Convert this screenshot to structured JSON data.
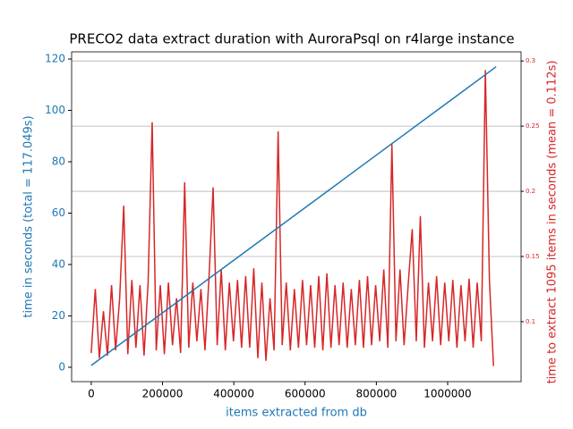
{
  "chart_data": {
    "type": "line",
    "title": "PRECO2 data extract duration with AuroraPsql on r4large instance",
    "xlabel": "items extracted from db",
    "ylabel": "time in seconds (total = 117.049s)",
    "y2label": "time to extract 1095 items in seconds (mean = 0.112s)",
    "xlim": [
      -55000,
      1206000
    ],
    "xticks": [
      0,
      200000,
      400000,
      600000,
      800000,
      1000000
    ],
    "ylim": [
      -5.6,
      122.8
    ],
    "yticks": [
      0,
      20,
      40,
      60,
      80,
      100,
      120
    ],
    "y2lim": [
      0.054,
      0.307
    ],
    "y2ticks": [
      0.1,
      0.15,
      0.2,
      0.25,
      0.3
    ],
    "grid": "y2",
    "series": [
      {
        "color": "#d62728",
        "axis": "y2",
        "x": [
          0,
          11400,
          22800,
          34200,
          45600,
          57000,
          68400,
          79800,
          91200,
          102600,
          114000,
          125400,
          136800,
          148200,
          159600,
          171000,
          182400,
          193800,
          205200,
          216600,
          228000,
          239400,
          250800,
          262200,
          273600,
          285000,
          296400,
          307800,
          319200,
          330600,
          342000,
          353400,
          364800,
          376200,
          387600,
          399000,
          410400,
          421800,
          433200,
          444600,
          456000,
          467400,
          478800,
          490200,
          501600,
          513000,
          524400,
          535800,
          547200,
          558600,
          570000,
          581400,
          592800,
          604200,
          615600,
          627000,
          638400,
          649800,
          661200,
          672600,
          684000,
          695400,
          706800,
          718200,
          729600,
          741000,
          752400,
          763800,
          775200,
          786600,
          798000,
          809400,
          820800,
          832200,
          843600,
          855000,
          866400,
          877800,
          889200,
          900600,
          912000,
          923400,
          934800,
          946200,
          957600,
          969000,
          980400,
          991800,
          1003200,
          1014600,
          1026000,
          1037400,
          1048800,
          1060200,
          1071600,
          1083000,
          1094400,
          1105800,
          1117200,
          1128600
        ],
        "values": [
          0.076,
          0.125,
          0.072,
          0.108,
          0.074,
          0.128,
          0.078,
          0.118,
          0.189,
          0.075,
          0.132,
          0.08,
          0.128,
          0.074,
          0.13,
          0.253,
          0.078,
          0.128,
          0.075,
          0.13,
          0.082,
          0.118,
          0.076,
          0.207,
          0.08,
          0.13,
          0.085,
          0.125,
          0.078,
          0.135,
          0.203,
          0.082,
          0.14,
          0.078,
          0.13,
          0.085,
          0.132,
          0.08,
          0.135,
          0.08,
          0.141,
          0.072,
          0.13,
          0.07,
          0.118,
          0.078,
          0.246,
          0.082,
          0.13,
          0.078,
          0.125,
          0.08,
          0.132,
          0.082,
          0.128,
          0.08,
          0.135,
          0.078,
          0.137,
          0.08,
          0.128,
          0.082,
          0.13,
          0.08,
          0.125,
          0.082,
          0.132,
          0.08,
          0.135,
          0.082,
          0.128,
          0.085,
          0.14,
          0.08,
          0.236,
          0.085,
          0.14,
          0.082,
          0.128,
          0.171,
          0.085,
          0.181,
          0.08,
          0.13,
          0.085,
          0.135,
          0.082,
          0.13,
          0.085,
          0.132,
          0.08,
          0.128,
          0.085,
          0.133,
          0.08,
          0.13,
          0.085,
          0.293,
          0.132,
          0.066
        ]
      },
      {
        "color": "#1f77b4",
        "axis": "y",
        "x": [
          0,
          1136000
        ],
        "values": [
          0.7,
          117
        ]
      }
    ]
  }
}
